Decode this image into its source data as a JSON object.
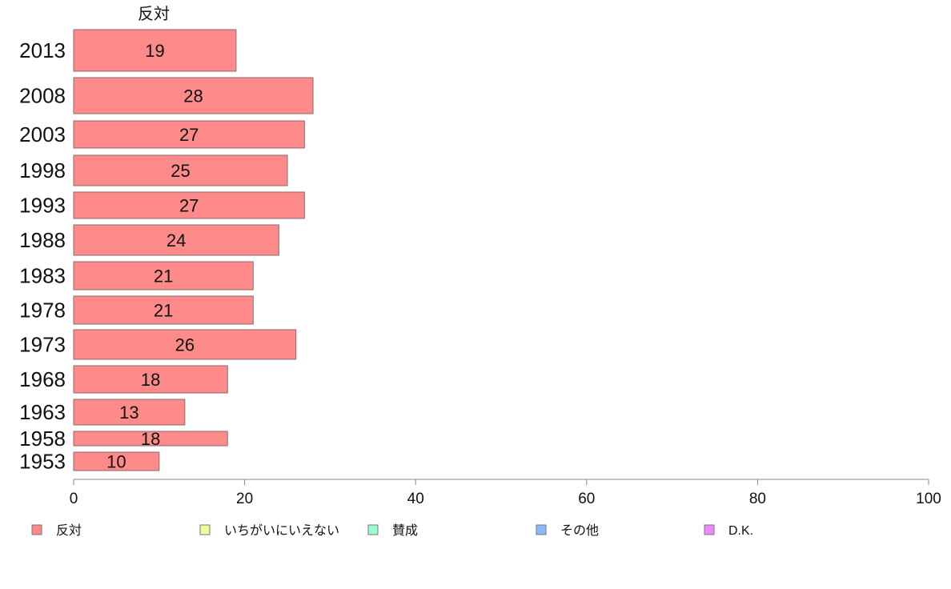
{
  "chart_data": {
    "type": "bar",
    "orientation": "horizontal",
    "column_header": "反対",
    "categories": [
      "2013",
      "2008",
      "2003",
      "1998",
      "1993",
      "1988",
      "1983",
      "1978",
      "1973",
      "1968",
      "1963",
      "1958",
      "1953"
    ],
    "series": [
      {
        "name": "反対",
        "values": [
          19,
          28,
          27,
          25,
          27,
          24,
          21,
          21,
          26,
          18,
          13,
          18,
          10
        ]
      }
    ],
    "data_labels": [
      "19",
      "28",
      "27",
      "25",
      "27",
      "24",
      "21",
      "21",
      "26",
      "18",
      "13",
      "18",
      "10"
    ],
    "xlim": [
      0,
      100
    ],
    "x_ticks": [
      0,
      20,
      40,
      60,
      80,
      100
    ],
    "x_tick_labels": [
      "0",
      "20",
      "40",
      "60",
      "80",
      "100"
    ],
    "grid": false,
    "legend_position": "bottom",
    "legend": [
      {
        "label": "反対",
        "color": "#ff8a8a"
      },
      {
        "label": "いちがいにいえない",
        "color": "#eeff99"
      },
      {
        "label": "賛成",
        "color": "#99ffcc"
      },
      {
        "label": "その他",
        "color": "#88bbff"
      },
      {
        "label": "D.K.",
        "color": "#ee88ff"
      }
    ],
    "colors": {
      "bar_fill": "#ff8a8a",
      "bar_stroke": "#8a6a6a",
      "axis": "#888888"
    }
  }
}
